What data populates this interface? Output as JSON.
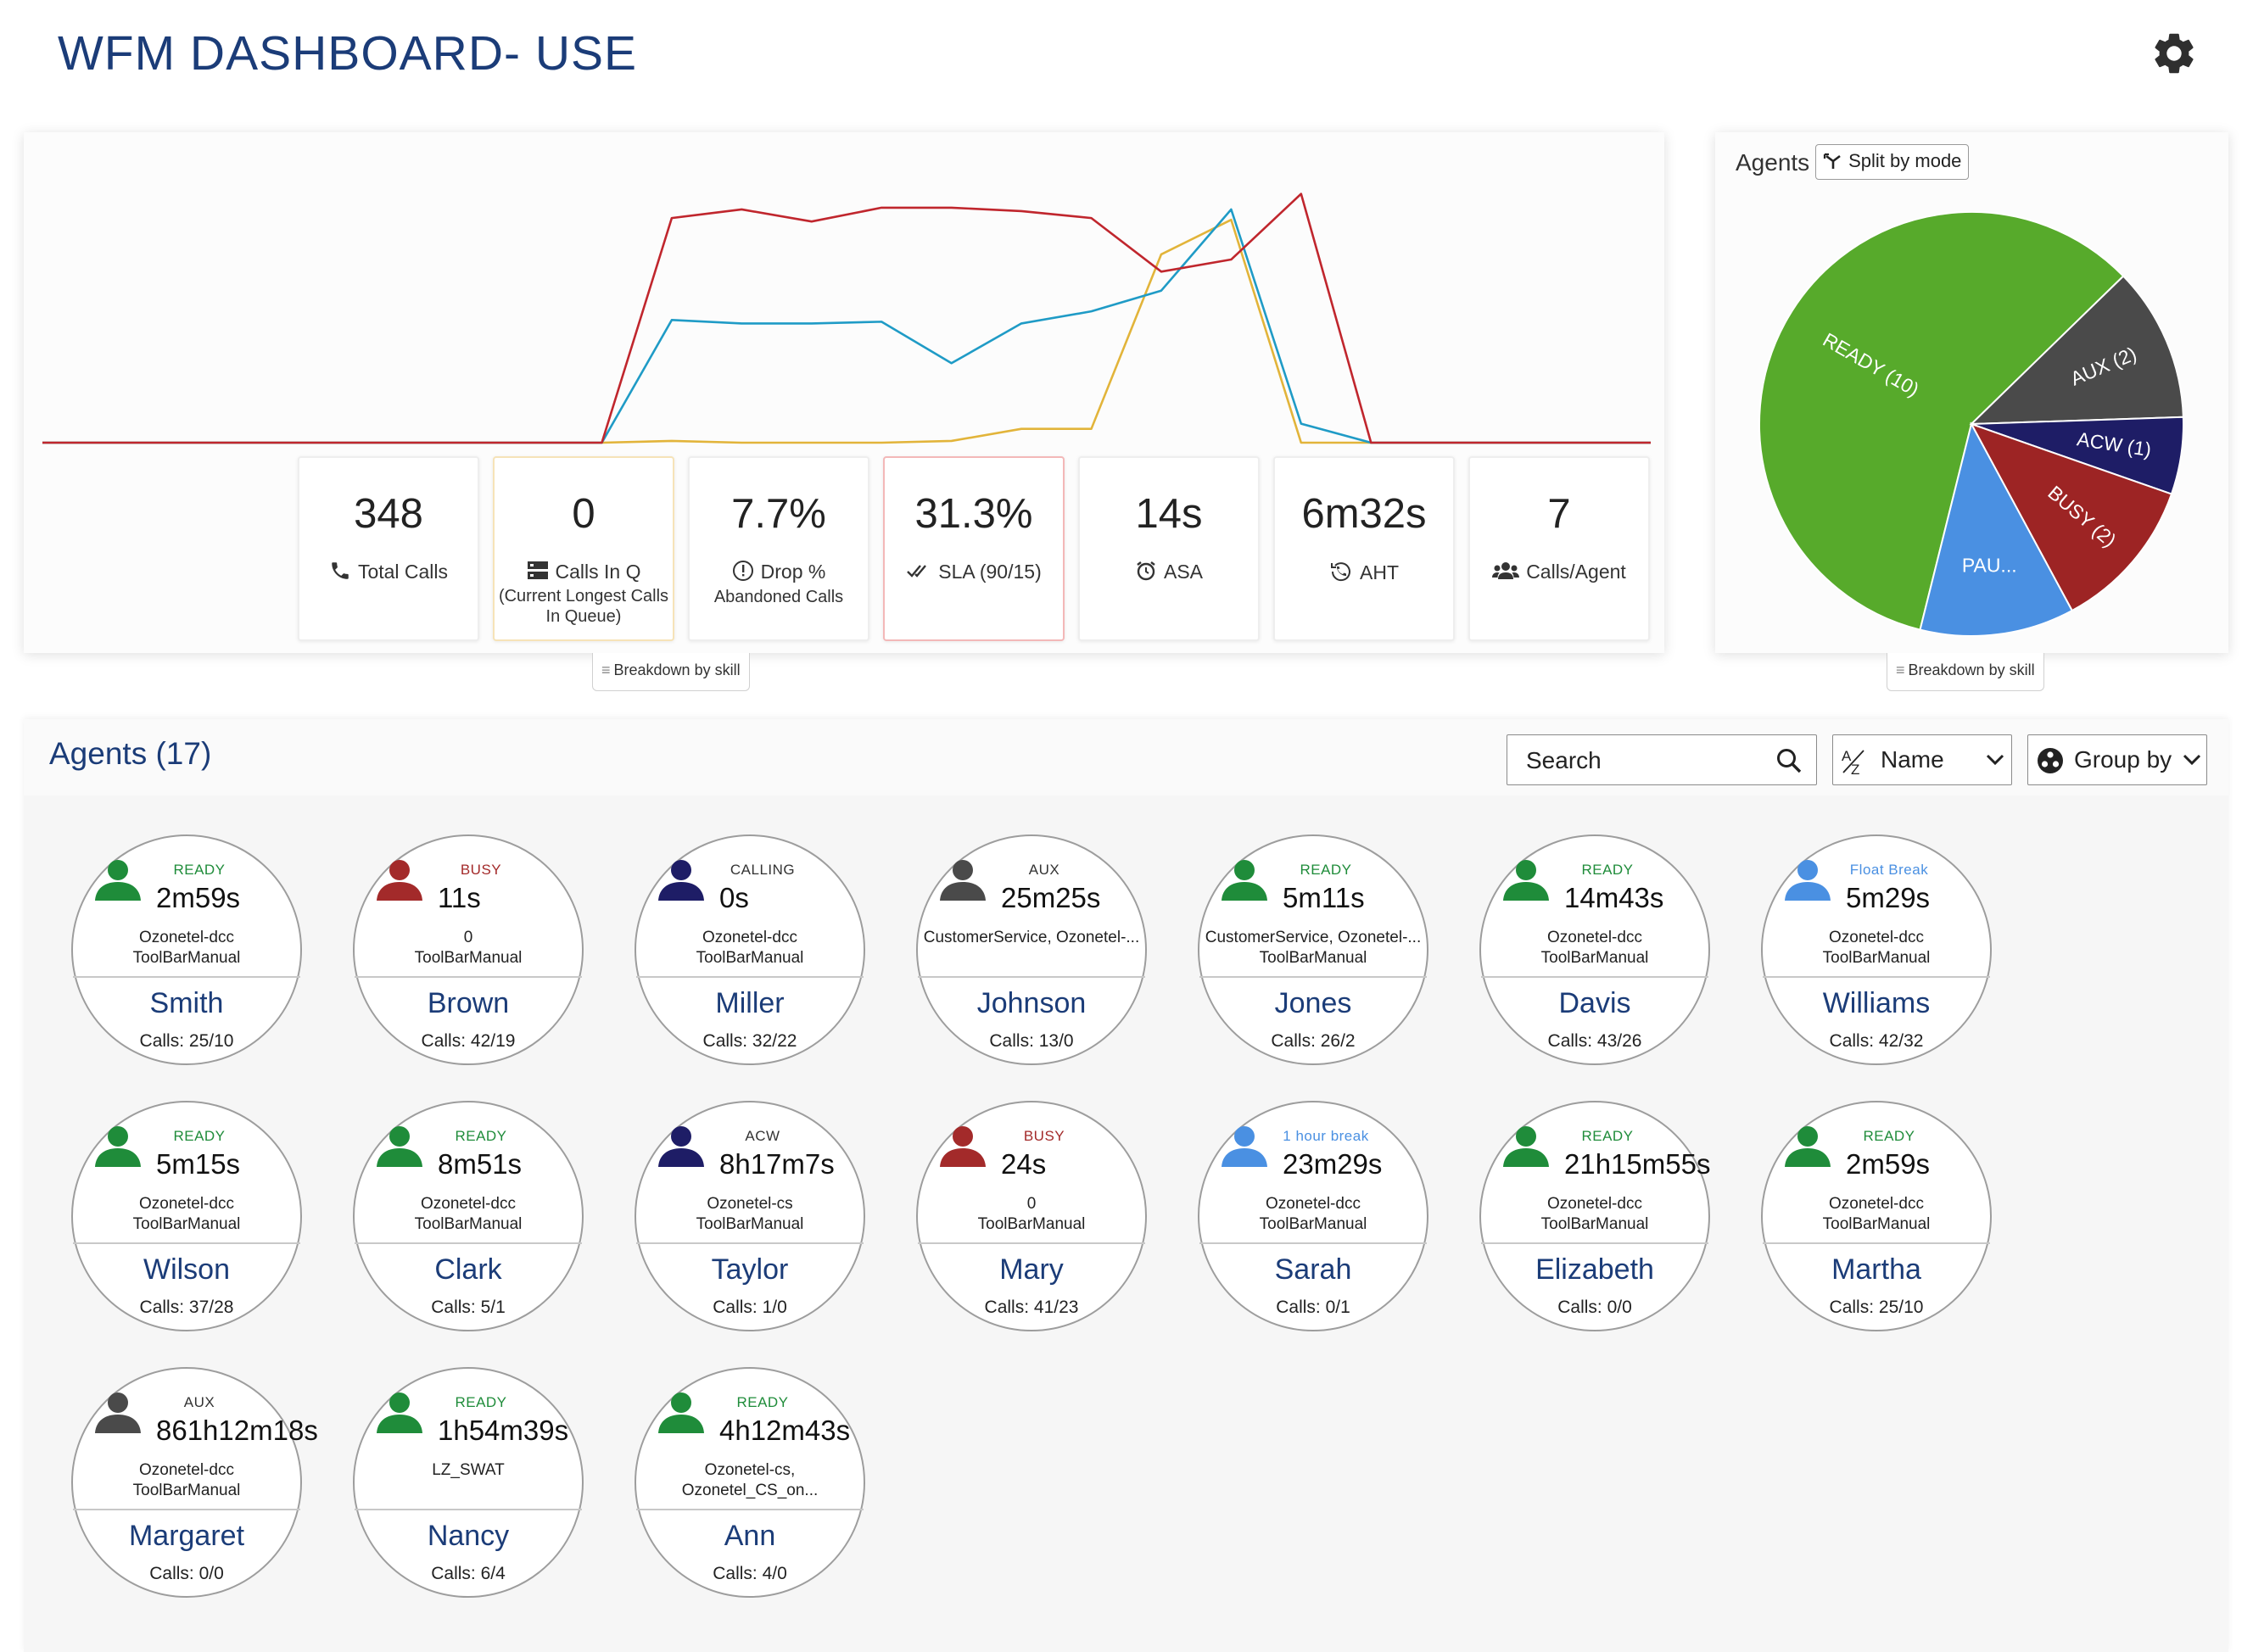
{
  "header": {
    "title": "WFM DASHBOARD- USE",
    "settings_icon": "gear-icon"
  },
  "chart_data": {
    "type": "line",
    "x": [
      0,
      1,
      2,
      3,
      4,
      5,
      6,
      7,
      8,
      9,
      10,
      11,
      12,
      13,
      14,
      15,
      16,
      17,
      18,
      19,
      20,
      21,
      22,
      23
    ],
    "series": [
      {
        "color": "#c0262d",
        "values": [
          0,
          0,
          0,
          0,
          0,
          0,
          0,
          0,
          0,
          130,
          135,
          128,
          136,
          136,
          134,
          130,
          99,
          106,
          144,
          0,
          0,
          0,
          0,
          0
        ]
      },
      {
        "color": "#1f9bc6",
        "values": [
          0,
          0,
          0,
          0,
          0,
          0,
          0,
          0,
          0,
          71,
          69,
          69,
          70,
          46,
          69,
          76,
          88,
          135,
          11,
          0,
          0,
          0,
          0,
          0
        ]
      },
      {
        "color": "#e2b43a",
        "values": [
          0,
          0,
          0,
          0,
          0,
          0,
          0,
          0,
          0,
          1,
          0,
          0,
          0,
          1,
          8,
          8,
          109,
          129,
          0,
          0,
          0,
          0,
          0,
          0
        ]
      }
    ],
    "ylim": [
      0,
      160
    ],
    "grid": false
  },
  "stats": {
    "total_calls": {
      "value": "348",
      "label": "Total Calls"
    },
    "calls_in_q": {
      "value": "0",
      "label": "Calls In Q",
      "sub": "(Current Longest Calls In Queue)"
    },
    "drop": {
      "value": "7.7%",
      "label": "Drop %",
      "sub": "Abandoned Calls"
    },
    "sla": {
      "value": "31.3%",
      "label": "SLA (90/15)"
    },
    "asa": {
      "value": "14s",
      "label": "ASA"
    },
    "aht": {
      "value": "6m32s",
      "label": "AHT"
    },
    "calls_per_agent": {
      "value": "7",
      "label": "Calls/Agent"
    }
  },
  "breakdown_label": "Breakdown by skill",
  "pie": {
    "title": "Agents",
    "split_button": "Split by mode",
    "slices": [
      {
        "label": "READY (10)",
        "value": 10,
        "color": "#57aa2b"
      },
      {
        "label": "AUX (2)",
        "value": 2,
        "color": "#4a4a4a"
      },
      {
        "label": "ACW (1)",
        "value": 1,
        "color": "#1e1d66"
      },
      {
        "label": "BUSY (2)",
        "value": 2,
        "color": "#9d2424"
      },
      {
        "label": "PAU...",
        "value": 2,
        "color": "#4a90e2"
      }
    ]
  },
  "agents_panel": {
    "title": "Agents (17)",
    "search_placeholder": "Search",
    "sort_label": "Name",
    "group_label": "Group by"
  },
  "agents": [
    {
      "state": "READY",
      "state_color": "#1f8c3a",
      "time": "2m59s",
      "skill1": "Ozonetel-dcc",
      "skill2": "ToolBarManual",
      "name": "Smith",
      "calls": "Calls: 25/10"
    },
    {
      "state": "BUSY",
      "state_color": "#a32a2a",
      "time": "11s",
      "skill1": "0",
      "skill2": "ToolBarManual",
      "name": "Brown",
      "calls": "Calls: 42/19"
    },
    {
      "state": "CALLING",
      "state_color": "#333333",
      "avatar_color": "#1e1d66",
      "time": "0s",
      "skill1": "Ozonetel-dcc",
      "skill2": "ToolBarManual",
      "name": "Miller",
      "calls": "Calls: 32/22"
    },
    {
      "state": "AUX",
      "state_color": "#333333",
      "avatar_color": "#4a4a4a",
      "time": "25m25s",
      "skill1": "CustomerService, Ozonetel-...",
      "skill2": "",
      "name": "Johnson",
      "calls": "Calls: 13/0"
    },
    {
      "state": "READY",
      "state_color": "#1f8c3a",
      "time": "5m11s",
      "skill1": "CustomerService, Ozonetel-...",
      "skill2": "ToolBarManual",
      "name": "Jones",
      "calls": "Calls: 26/2"
    },
    {
      "state": "READY",
      "state_color": "#1f8c3a",
      "time": "14m43s",
      "skill1": "Ozonetel-dcc",
      "skill2": "ToolBarManual",
      "name": "Davis",
      "calls": "Calls: 43/26"
    },
    {
      "state": "Float Break",
      "state_color": "#4a90e2",
      "time": "5m29s",
      "skill1": "Ozonetel-dcc",
      "skill2": "ToolBarManual",
      "name": "Williams",
      "calls": "Calls: 42/32"
    },
    {
      "state": "READY",
      "state_color": "#1f8c3a",
      "time": "5m15s",
      "skill1": "Ozonetel-dcc",
      "skill2": "ToolBarManual",
      "name": "Wilson",
      "calls": "Calls: 37/28"
    },
    {
      "state": "READY",
      "state_color": "#1f8c3a",
      "time": "8m51s",
      "skill1": "Ozonetel-dcc",
      "skill2": "ToolBarManual",
      "name": "Clark",
      "calls": "Calls: 5/1"
    },
    {
      "state": "ACW",
      "state_color": "#333333",
      "avatar_color": "#1e1d66",
      "time": "8h17m7s",
      "skill1": "Ozonetel-cs",
      "skill2": "ToolBarManual",
      "name": "Taylor",
      "calls": "Calls: 1/0"
    },
    {
      "state": "BUSY",
      "state_color": "#a32a2a",
      "time": "24s",
      "skill1": "0",
      "skill2": "ToolBarManual",
      "name": "Mary",
      "calls": "Calls: 41/23"
    },
    {
      "state": "1 hour break",
      "state_color": "#4a90e2",
      "time": "23m29s",
      "skill1": "Ozonetel-dcc",
      "skill2": "ToolBarManual",
      "name": "Sarah",
      "calls": "Calls: 0/1"
    },
    {
      "state": "READY",
      "state_color": "#1f8c3a",
      "time": "21h15m55s",
      "skill1": "Ozonetel-dcc",
      "skill2": "ToolBarManual",
      "name": "Elizabeth",
      "calls": "Calls: 0/0"
    },
    {
      "state": "READY",
      "state_color": "#1f8c3a",
      "time": "2m59s",
      "skill1": "Ozonetel-dcc",
      "skill2": "ToolBarManual",
      "name": "Martha",
      "calls": "Calls: 25/10"
    },
    {
      "state": "AUX",
      "state_color": "#333333",
      "avatar_color": "#4a4a4a",
      "time": "861h12m18s",
      "skill1": "Ozonetel-dcc",
      "skill2": "ToolBarManual",
      "name": "Margaret",
      "calls": "Calls: 0/0"
    },
    {
      "state": "READY",
      "state_color": "#1f8c3a",
      "time": "1h54m39s",
      "skill1": "LZ_SWAT",
      "skill2": "",
      "name": "Nancy",
      "calls": "Calls: 6/4"
    },
    {
      "state": "READY",
      "state_color": "#1f8c3a",
      "time": "4h12m43s",
      "skill1": "Ozonetel-cs,",
      "skill2": "Ozonetel_CS_on...",
      "name": "Ann",
      "calls": "Calls: 4/0"
    }
  ]
}
